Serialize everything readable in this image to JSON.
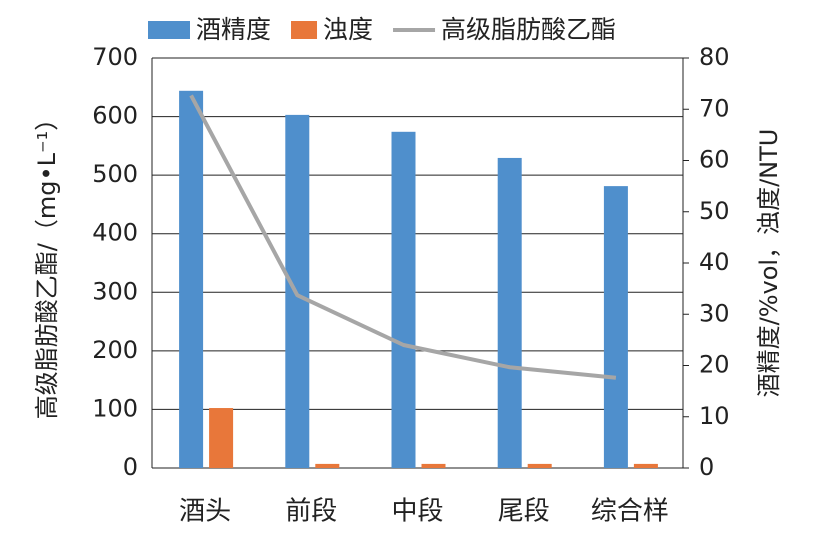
{
  "chart_data": {
    "type": "combo",
    "categories": [
      "酒头",
      "前段",
      "中段",
      "尾段",
      "综合样"
    ],
    "series": [
      {
        "name": "酒精度",
        "type": "bar",
        "color": "#4f8fcc",
        "axis": "y2",
        "values": [
          73.6,
          68.9,
          65.6,
          60.5,
          55.0
        ]
      },
      {
        "name": "浊度",
        "type": "bar",
        "color": "#e8773a",
        "axis": "y2",
        "values": [
          11.7,
          0.8,
          0.8,
          0.8,
          0.8
        ]
      },
      {
        "name": "高级脂肪酸乙酯",
        "type": "line",
        "color": "#a6a6a6",
        "values": [
          636,
          295,
          210,
          172,
          154
        ]
      }
    ],
    "ylabel": "高级脂肪酸乙酯/（mg•L⁻¹）",
    "y2label": "酒精度/%vol，浊度/NTU",
    "ylim": [
      0,
      700
    ],
    "yticks": [
      0,
      100,
      200,
      300,
      400,
      500,
      600,
      700
    ],
    "y2lim": [
      0,
      80
    ],
    "y2ticks": [
      0,
      10,
      20,
      30,
      40,
      50,
      60,
      70,
      80
    ],
    "grid": true
  }
}
